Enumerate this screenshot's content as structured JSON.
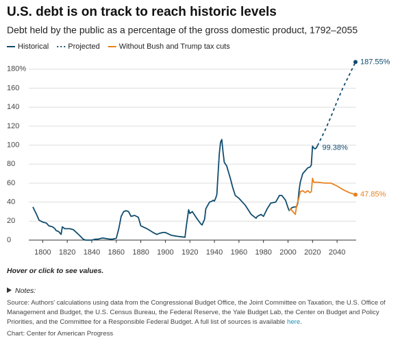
{
  "chart_data": {
    "type": "line",
    "title": "U.S. debt is on track to reach historic levels",
    "subtitle": "Debt held by the public as a percentage of the gross domestic product, 1792–2055",
    "xlim": [
      1792,
      2055
    ],
    "xticks": [
      1800,
      1820,
      1840,
      1860,
      1880,
      1900,
      1920,
      1940,
      1960,
      1980,
      2000,
      2020,
      2040
    ],
    "ylim": [
      0,
      190
    ],
    "yticks": [
      0,
      20,
      40,
      60,
      80,
      100,
      120,
      140,
      160,
      {
        "value": 180,
        "label": "180%"
      }
    ],
    "grid": true,
    "series": [
      {
        "name": "Historical",
        "color": "#0f4c6e",
        "dash": false,
        "x": [
          1792,
          1795,
          1797,
          1800,
          1803,
          1805,
          1808,
          1810,
          1811,
          1813,
          1815,
          1816,
          1818,
          1822,
          1825,
          1830,
          1833,
          1835,
          1840,
          1843,
          1845,
          1848,
          1850,
          1852,
          1855,
          1857,
          1860,
          1862,
          1864,
          1866,
          1868,
          1870,
          1872,
          1875,
          1878,
          1880,
          1885,
          1890,
          1893,
          1895,
          1898,
          1900,
          1905,
          1910,
          1913,
          1916,
          1917,
          1919,
          1920,
          1922,
          1925,
          1929,
          1930,
          1932,
          1933,
          1936,
          1938,
          1939,
          1940,
          1941,
          1942,
          1943,
          1944,
          1945,
          1946,
          1947,
          1948,
          1950,
          1953,
          1955,
          1957,
          1960,
          1965,
          1970,
          1974,
          1975,
          1978,
          1980,
          1983,
          1986,
          1990,
          1993,
          1995,
          1998,
          2000,
          2001,
          2003,
          2005,
          2007,
          2008,
          2009,
          2010,
          2012,
          2014,
          2016,
          2018,
          2019,
          2020,
          2021,
          2022,
          2023,
          2024
        ],
        "y": [
          35,
          27,
          21,
          19,
          18,
          15,
          14,
          12,
          10,
          9,
          6,
          14,
          12,
          12,
          11,
          5,
          1,
          0,
          0,
          1,
          1,
          2,
          2,
          1.5,
          1,
          1,
          2,
          12,
          25,
          30,
          31,
          30,
          25,
          26,
          24,
          15,
          12,
          8,
          6,
          7,
          8,
          8,
          5,
          4,
          3.5,
          3,
          14,
          32,
          28,
          30,
          24,
          17,
          16,
          22,
          33,
          40,
          41,
          42,
          41,
          44,
          48,
          70,
          91,
          103,
          106,
          93,
          82,
          78,
          65,
          55,
          47,
          44,
          37,
          27,
          23,
          25,
          27,
          25,
          33,
          39,
          40,
          47,
          47,
          42,
          34,
          31,
          34,
          35,
          35,
          39,
          52,
          61,
          70,
          73,
          76,
          77,
          79,
          99,
          97,
          96,
          97,
          99.38
        ]
      },
      {
        "name": "Projected",
        "color": "#0f4c6e",
        "dash": true,
        "x": [
          2024,
          2030,
          2035,
          2040,
          2045,
          2050,
          2055
        ],
        "y": [
          99.38,
          115,
          130,
          146,
          161,
          174,
          187.55
        ]
      },
      {
        "name": "Without Bush and Trump tax cuts",
        "color": "#e8821e",
        "dash": false,
        "x": [
          2001,
          2002,
          2004,
          2006,
          2007,
          2009,
          2010,
          2012,
          2014,
          2016,
          2018,
          2019,
          2020,
          2021,
          2024,
          2030,
          2035,
          2040,
          2045,
          2050,
          2055
        ],
        "y": [
          31,
          33,
          30,
          27,
          36,
          45,
          51,
          52,
          50,
          52,
          50,
          51,
          65,
          61,
          61,
          60,
          60,
          57,
          53,
          50,
          47.85
        ]
      }
    ],
    "annotations": [
      {
        "x": 2055,
        "y": 187.55,
        "label": "187.55%",
        "color": "#0f4c6e",
        "marker": true
      },
      {
        "x": 2024,
        "y": 99.38,
        "label": "99.38%",
        "color": "#0f4c6e",
        "marker": false
      },
      {
        "x": 2055,
        "y": 47.85,
        "label": "47.85%",
        "color": "#e8821e",
        "marker": true
      }
    ]
  },
  "footer": {
    "hint": "Hover or click to see values.",
    "notes": "Notes:",
    "source": "Source: Authors' calculations using data from the Congressional Budget Office, the Joint Committee on Taxation, the U.S. Office of Management and Budget, the U.S. Census Bureau, the Federal Reserve, the Yale Budget Lab, the Center on Budget and Policy Priorities, and the Committee for a Responsible Federal Budget. A full list of sources is available ",
    "source_link": "here",
    "source_end": ".",
    "credit": "Chart: Center for American Progress"
  }
}
